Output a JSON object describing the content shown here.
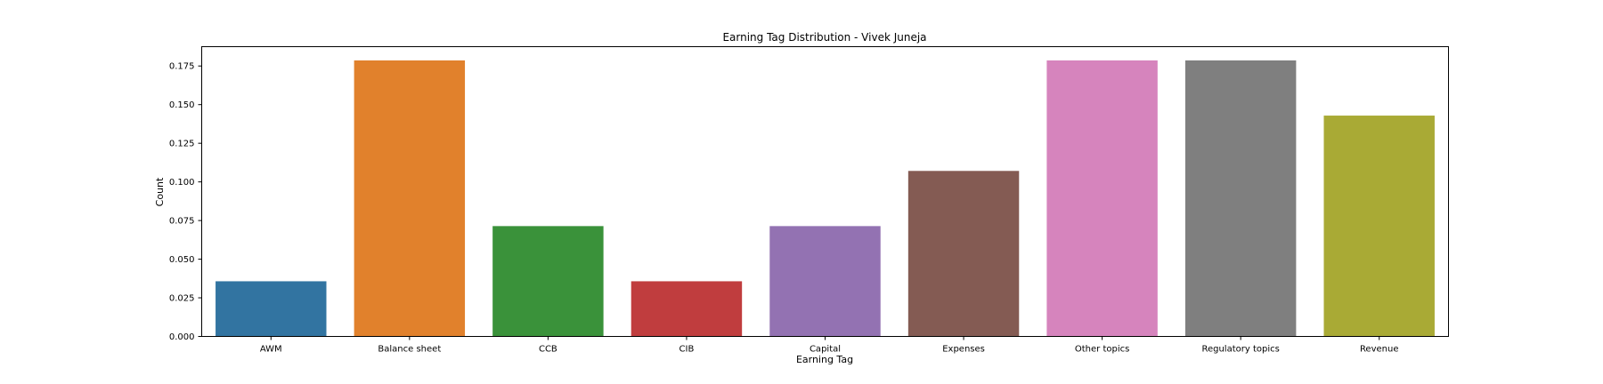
{
  "chart_data": {
    "type": "bar",
    "title": "Earning Tag Distribution - Vivek Juneja",
    "xlabel": "Earning Tag",
    "ylabel": "Count",
    "categories": [
      "AWM",
      "Balance sheet",
      "CCB",
      "CIB",
      "Capital",
      "Expenses",
      "Other topics",
      "Regulatory topics",
      "Revenue"
    ],
    "values": [
      0.0357,
      0.1786,
      0.0714,
      0.0357,
      0.0714,
      0.1071,
      0.1786,
      0.1786,
      0.1429
    ],
    "colors": [
      "#3274a1",
      "#e1812c",
      "#3a923a",
      "#c03d3e",
      "#9372b2",
      "#845b53",
      "#d684bd",
      "#7f7f7f",
      "#a9aa35"
    ],
    "ylim": [
      0,
      0.1875
    ],
    "yticks": [
      0.0,
      0.025,
      0.05,
      0.075,
      0.1,
      0.125,
      0.15,
      0.175
    ],
    "ytick_labels": [
      "0.000",
      "0.025",
      "0.050",
      "0.075",
      "0.100",
      "0.125",
      "0.150",
      "0.175"
    ],
    "grid": false,
    "legend": "none"
  }
}
